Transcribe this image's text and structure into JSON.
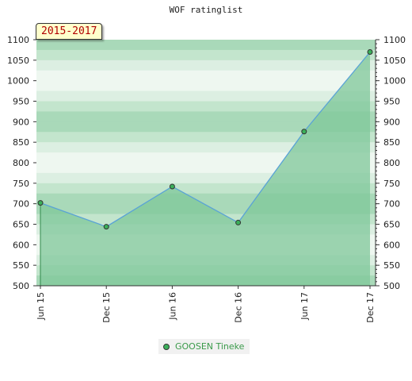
{
  "chart_data": {
    "type": "area",
    "title": "WOF ratinglist",
    "badge": "2015-2017",
    "x_categories": [
      "Jun 15",
      "Dec 15",
      "Jun 16",
      "Dec 16",
      "Jun 17",
      "Dec 17"
    ],
    "series": [
      {
        "name": "GOOSEN Tineke",
        "values": [
          702,
          644,
          742,
          654,
          876,
          1070
        ]
      }
    ],
    "ylim": [
      500,
      1100
    ],
    "y_ticks": [
      500,
      550,
      600,
      650,
      700,
      750,
      800,
      850,
      900,
      950,
      1000,
      1050,
      1100
    ],
    "y_axis_right_mirrored": true,
    "legend_position": "bottom-center",
    "colors": {
      "line": "#5aa3d6",
      "area": "#7fc79a",
      "marker": "#3bb05a",
      "badge_text": "#b00000"
    }
  }
}
